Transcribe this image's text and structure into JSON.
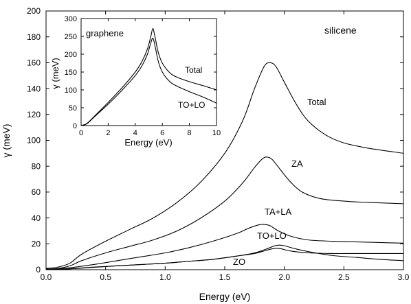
{
  "chart_data": [
    {
      "type": "line",
      "xlabel": "Energy (eV)",
      "ylabel": "γ (meV)",
      "xlim": [
        0.0,
        3.0
      ],
      "ylim": [
        0,
        200
      ],
      "xticks": [
        "0.0",
        "0.5",
        "1.0",
        "1.5",
        "2.0",
        "2.5",
        "3.0"
      ],
      "yticks": [
        "0",
        "20",
        "40",
        "60",
        "80",
        "100",
        "120",
        "140",
        "160",
        "180",
        "200"
      ],
      "annotations": [
        "silicene"
      ],
      "series": [
        {
          "name": "Total",
          "x": [
            0,
            0.1,
            0.2,
            0.3,
            0.5,
            0.7,
            0.9,
            1.1,
            1.3,
            1.5,
            1.65,
            1.75,
            1.83,
            1.88,
            1.93,
            2.0,
            2.1,
            2.2,
            2.35,
            2.5,
            2.7,
            3.0
          ],
          "y": [
            1,
            2,
            5,
            12,
            22,
            31,
            40,
            52,
            68,
            90,
            115,
            140,
            157,
            160,
            157,
            145,
            128,
            115,
            104,
            98,
            94,
            90
          ]
        },
        {
          "name": "ZA",
          "x": [
            0,
            0.1,
            0.2,
            0.3,
            0.5,
            0.7,
            0.9,
            1.1,
            1.3,
            1.5,
            1.65,
            1.75,
            1.82,
            1.86,
            1.9,
            1.97,
            2.05,
            2.15,
            2.3,
            2.5,
            2.7,
            3.0
          ],
          "y": [
            0.5,
            1,
            3,
            7,
            13,
            18,
            23,
            30,
            40,
            53,
            67,
            79,
            86,
            87,
            85,
            77,
            68,
            60,
            55,
            53,
            52,
            51
          ]
        },
        {
          "name": "TA+LA",
          "x": [
            0,
            0.2,
            0.4,
            0.6,
            0.8,
            1.0,
            1.2,
            1.4,
            1.6,
            1.7,
            1.78,
            1.83,
            1.88,
            1.95,
            2.05,
            2.2,
            2.4,
            2.6,
            2.8,
            3.0
          ],
          "y": [
            0.3,
            1.5,
            4,
            7,
            10,
            13,
            17,
            22,
            28,
            32,
            34.5,
            35,
            34,
            30,
            26,
            23,
            22,
            21.5,
            21,
            20.5
          ]
        },
        {
          "name": "TO+LO",
          "x": [
            0,
            0.2,
            0.4,
            0.6,
            0.8,
            1.0,
            1.2,
            1.4,
            1.6,
            1.75,
            1.85,
            1.92,
            1.96,
            2.0,
            2.1,
            2.2,
            2.4,
            2.6,
            2.8,
            3.0
          ],
          "y": [
            0,
            0.7,
            2,
            3,
            4,
            5,
            6.5,
            8,
            10.5,
            13,
            16,
            18.5,
            19,
            18.5,
            16,
            14,
            11,
            9.5,
            8,
            7
          ]
        },
        {
          "name": "ZO",
          "x": [
            0,
            0.2,
            0.4,
            0.6,
            0.8,
            1.0,
            1.2,
            1.4,
            1.6,
            1.75,
            1.85,
            1.92,
            1.97,
            2.05,
            2.2,
            2.4,
            2.6,
            2.8,
            3.0
          ],
          "y": [
            0,
            0.7,
            1.8,
            3,
            4,
            5,
            6.5,
            8,
            10.5,
            12.5,
            15,
            16.5,
            16.2,
            14.5,
            13,
            12.5,
            12.5,
            12.5,
            12.5
          ]
        }
      ]
    },
    {
      "type": "line",
      "xlabel": "Energy (eV)",
      "ylabel": "γ (meV)",
      "xlim": [
        0,
        10
      ],
      "ylim": [
        0,
        300
      ],
      "xticks": [
        "0",
        "2",
        "4",
        "6",
        "8",
        "10"
      ],
      "yticks": [
        "0",
        "50",
        "100",
        "150",
        "200",
        "250",
        "300"
      ],
      "annotations": [
        "graphene"
      ],
      "series": [
        {
          "name": "Total",
          "x": [
            0,
            0.3,
            0.5,
            1,
            2,
            3,
            4,
            4.5,
            4.9,
            5.15,
            5.3,
            5.45,
            5.7,
            6,
            6.5,
            7,
            8,
            9,
            10
          ],
          "y": [
            0,
            3,
            8,
            27,
            65,
            105,
            150,
            180,
            215,
            250,
            272,
            250,
            205,
            175,
            150,
            137,
            123,
            112,
            100
          ]
        },
        {
          "name": "TO+LO",
          "x": [
            0,
            0.3,
            0.5,
            1,
            2,
            3,
            4,
            4.5,
            4.9,
            5.15,
            5.3,
            5.45,
            5.7,
            6,
            6.5,
            7,
            8,
            9,
            10
          ],
          "y": [
            0,
            3,
            7,
            25,
            60,
            98,
            140,
            168,
            200,
            232,
            245,
            225,
            180,
            150,
            125,
            112,
            95,
            80,
            63
          ]
        }
      ]
    }
  ]
}
